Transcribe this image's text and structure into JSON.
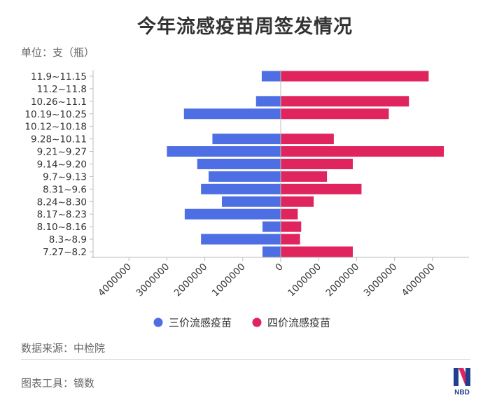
{
  "title": "今年流感疫苗周签发情况",
  "unit_label": "单位：支（瓶）",
  "source_label": "数据来源：中检院",
  "tool_label": "图表工具：镝数",
  "logo_text": "NBD",
  "colors": {
    "trivalent": "#4e6fe3",
    "quadrivalent": "#e0245e",
    "axis": "#bdbdbd",
    "text": "#333333",
    "muted": "#666666"
  },
  "chart_data": {
    "type": "bar",
    "orientation": "horizontal-butterfly",
    "categories": [
      "11.9~11.15",
      "11.2~11.8",
      "10.26~11.1",
      "10.19~10.25",
      "10.12~10.18",
      "9.28~10.11",
      "9.21~9.27",
      "9.14~9.20",
      "9.7~9.13",
      "8.31~9.6",
      "8.24~8.30",
      "8.17~8.23",
      "8.10~8.16",
      "8.3~8.9",
      "7.27~8.2"
    ],
    "series": [
      {
        "name": "三价流感疫苗",
        "color": "#4e6fe3",
        "direction": "left",
        "values": [
          500000,
          0,
          650000,
          2550000,
          0,
          1800000,
          3000000,
          2200000,
          1900000,
          2100000,
          1550000,
          2530000,
          480000,
          2100000,
          480000
        ]
      },
      {
        "name": "四价流感疫苗",
        "color": "#e0245e",
        "direction": "right",
        "values": [
          3900000,
          0,
          3380000,
          2850000,
          0,
          1400000,
          4300000,
          1900000,
          1220000,
          2130000,
          870000,
          450000,
          540000,
          510000,
          1900000
        ]
      }
    ],
    "xlim": [
      -4000000,
      4000000
    ],
    "x_ticks": [
      {
        "value": -4000000,
        "label": "4000000"
      },
      {
        "value": -3000000,
        "label": "3000000"
      },
      {
        "value": -2000000,
        "label": "2000000"
      },
      {
        "value": -1000000,
        "label": "1000000"
      },
      {
        "value": 0,
        "label": "0"
      },
      {
        "value": 1000000,
        "label": "1000000"
      },
      {
        "value": 2000000,
        "label": "2000000"
      },
      {
        "value": 3000000,
        "label": "3000000"
      },
      {
        "value": 4000000,
        "label": "4000000"
      }
    ],
    "legend_position": "bottom",
    "grid": false
  }
}
